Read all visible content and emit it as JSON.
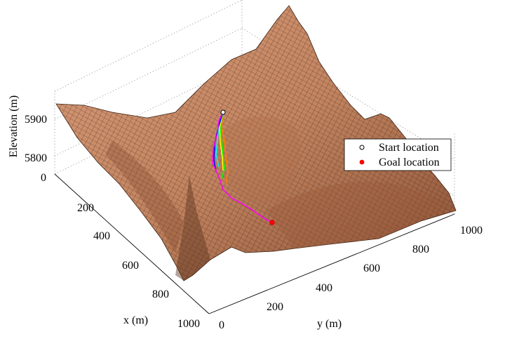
{
  "chart_data": {
    "type": "surface",
    "xlabel": "x (m)",
    "ylabel": "y (m)",
    "zlabel": "Elevation (m)",
    "x_ticks": [
      "0",
      "200",
      "400",
      "600",
      "800",
      "1000"
    ],
    "y_ticks": [
      "0",
      "200",
      "400",
      "600",
      "800",
      "1000"
    ],
    "z_ticks": [
      "5800",
      "5900"
    ],
    "xlim": [
      0,
      1000
    ],
    "ylim": [
      0,
      1000
    ],
    "surface_color": "#c98a67",
    "mesh_color": "#1a1a1a",
    "grid": true,
    "legend": {
      "placement": "right",
      "entries": [
        {
          "label": "Start location",
          "marker": "open-circle",
          "color": "#000000"
        },
        {
          "label": "Goal location",
          "marker": "filled-circle",
          "color": "#ff0000"
        }
      ]
    },
    "series": [
      {
        "color": "#ff00ff"
      },
      {
        "color": "#00ffff"
      },
      {
        "color": "#0000ff"
      },
      {
        "color": "#ffff00"
      },
      {
        "color": "#00ff00"
      },
      {
        "color": "#ff8000"
      }
    ]
  }
}
